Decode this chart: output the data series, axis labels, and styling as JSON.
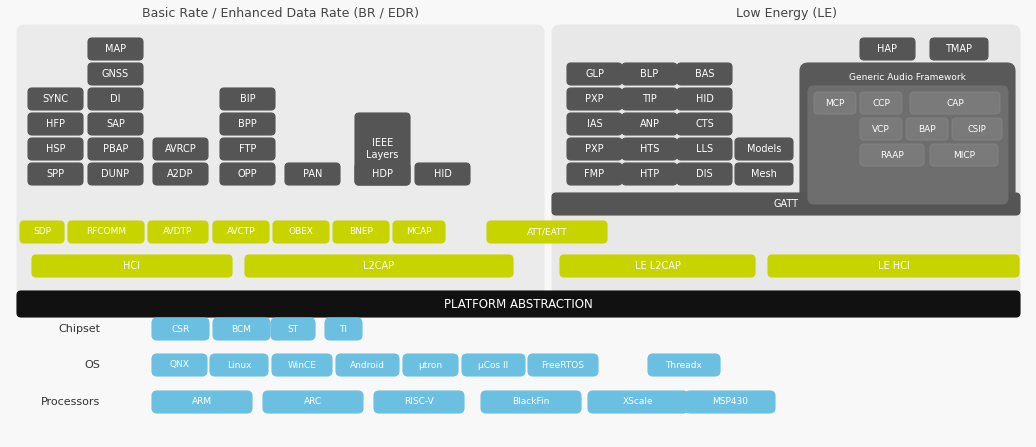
{
  "title_left": "Basic Rate / Enhanced Data Rate (BR / EDR)",
  "title_right": "Low Energy (LE)",
  "dark_color": "#555555",
  "yellow_color": "#c8d400",
  "blue_color": "#6bbfe0",
  "platform_text": "PLATFORM ABSTRACTION",
  "gaf_label": "Generic Audio Framework",
  "gatt_label": "GATT",
  "chipset_items": [
    "CSR",
    "BCM",
    "ST",
    "TI"
  ],
  "os_items": [
    "QNX",
    "Linux",
    "WinCE",
    "Android",
    "μtron",
    "μCos II",
    "FreeRTOS",
    "Threadx"
  ],
  "proc_items": [
    "ARM",
    "ARC",
    "RISC-V",
    "BlackFin",
    "XScale",
    "MSP430"
  ],
  "row_labels": [
    "Chipset",
    "OS",
    "Processors"
  ]
}
